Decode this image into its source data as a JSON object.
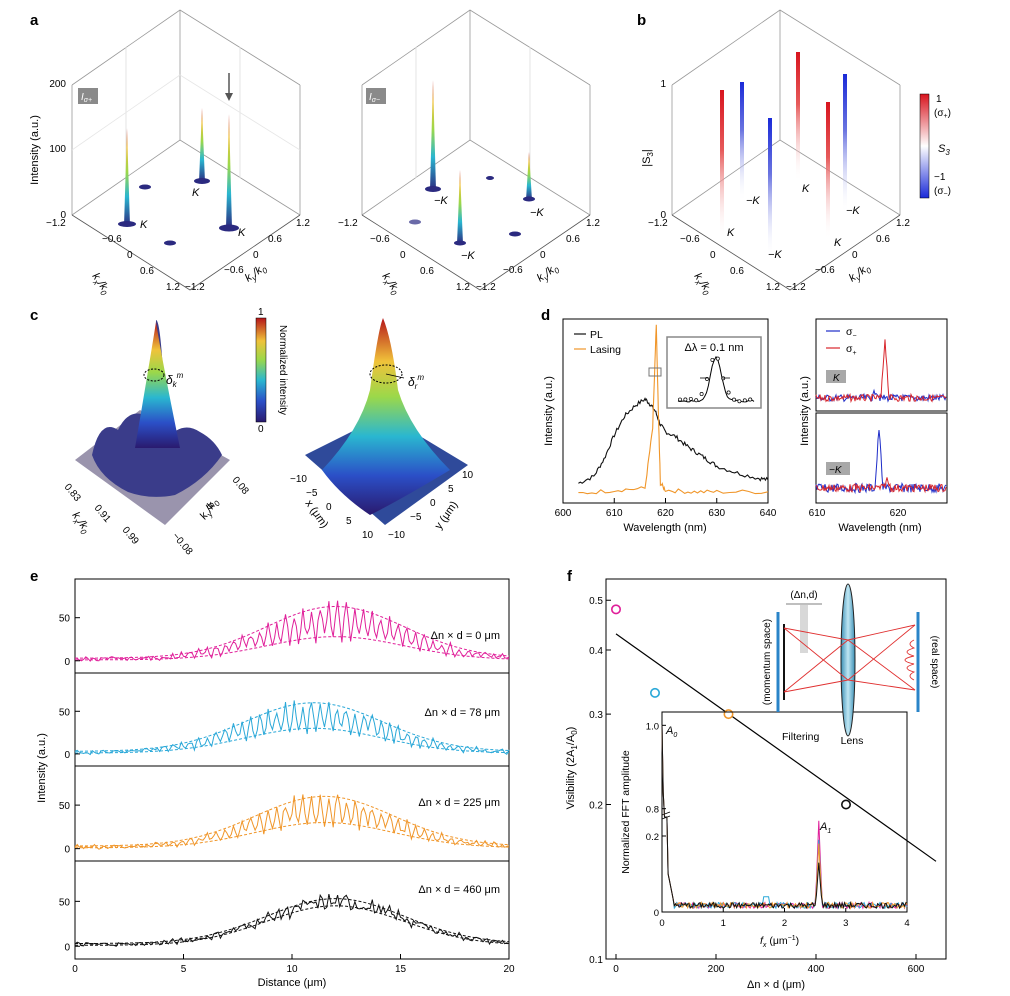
{
  "panels": {
    "a": "a",
    "b": "b",
    "c": "c",
    "d": "d",
    "e": "e",
    "f": "f"
  },
  "panel_a": {
    "left_badge": "I",
    "left_badge_sub": "σ+",
    "right_badge": "I",
    "right_badge_sub": "σ−",
    "z_label": "Intensity (a.u.)",
    "z_ticks": [
      "0",
      "100",
      "200"
    ],
    "kx_label": "k",
    "kx_label_sub": "x",
    "kx_label_den": "/k",
    "kx_label_den_sub": "0",
    "ky_label": "k",
    "ky_label_sub": "y",
    "ky_label_den": "/k",
    "ky_label_den_sub": "0",
    "kx_ticks": [
      "−1.2",
      "−0.6",
      "0",
      "0.6",
      "1.2"
    ],
    "ky_ticks": [
      "−1.2",
      "−0.6",
      "0",
      "0.6",
      "1.2"
    ],
    "left_valleys": [
      "K",
      "K",
      "K"
    ],
    "right_valleys": [
      "−K",
      "−K",
      "−K"
    ]
  },
  "panel_b": {
    "z_label": "|S",
    "z_label_sub": "3",
    "z_label_end": "|",
    "z_ticks": [
      "0",
      "1"
    ],
    "colorbar_top": "1",
    "colorbar_top_sub": "(σ",
    "colorbar_top_sub2": "+",
    "colorbar_top_sub3": ")",
    "colorbar_mid": "S",
    "colorbar_mid_sub": "3",
    "colorbar_bottom": "−1",
    "colorbar_bottom_sub": "(σ",
    "colorbar_bottom_sub2": "−",
    "colorbar_bottom_sub3": ")",
    "valleys": [
      "K",
      "−K",
      "K",
      "−K",
      "−K",
      "K"
    ]
  },
  "panel_c": {
    "colorbar_top": "1",
    "colorbar_bottom": "0",
    "colorbar_label": "Normalized intensity",
    "delta_k": "δ",
    "delta_k_sub": "k",
    "delta_k_sup": "m",
    "delta_r": "δ",
    "delta_r_sub": "r",
    "delta_r_sup": "m",
    "left_kx_ticks": [
      "0.83",
      "0.91",
      "0.99"
    ],
    "left_ky_ticks": [
      "0.08",
      "0",
      "−0.08"
    ],
    "left_kx_label": "k",
    "left_kx_label_sub": "x",
    "left_ky_label": "k",
    "left_ky_label_sub": "y",
    "label_den": "/k",
    "label_den_sub": "0",
    "right_x_ticks": [
      "−10",
      "−5",
      "0",
      "5",
      "10"
    ],
    "right_y_ticks": [
      "10",
      "5",
      "0",
      "−5",
      "−10"
    ],
    "right_x_label": "x (μm)",
    "right_y_label": "y (μm)"
  },
  "panel_d": {
    "legend": [
      "PL",
      "Lasing"
    ],
    "inset_label": "Δλ = 0.1 nm",
    "ylabel": "Intensity (a.u.)",
    "xlabel": "Wavelength (nm)",
    "xticks": [
      "600",
      "610",
      "620",
      "630",
      "640"
    ],
    "right_legend": [
      "σ",
      "σ"
    ],
    "right_legend_sub": [
      "−",
      "+"
    ],
    "right_top_badge": "K",
    "right_bottom_badge": "−K",
    "right_ylabel": "Intensity (a.u.)",
    "right_xlabel": "Wavelength (nm)",
    "right_xticks": [
      "610",
      "620"
    ]
  },
  "panel_e": {
    "ylabel": "Intensity (a.u.)",
    "xlabel": "Distance (μm)",
    "xticks": [
      "0",
      "5",
      "10",
      "15",
      "20"
    ],
    "yticks": [
      "0",
      "50"
    ],
    "row_labels": [
      "Δn × d = 0 μm",
      "Δn × d = 78 μm",
      "Δn × d = 225 μm",
      "Δn × d = 460 μm"
    ]
  },
  "panel_f": {
    "ylabel": "Visibility (2A",
    "ylabel_sub": "1",
    "ylabel_mid": "/A",
    "ylabel_sub2": "0",
    "ylabel_end": ")",
    "xlabel": "Δn × d (μm)",
    "yticks": [
      "0.1",
      "0.2",
      "0.3",
      "0.4",
      "0.5"
    ],
    "xticks": [
      "0",
      "200",
      "400",
      "600"
    ],
    "inset_ylabel": "Normalized FFT amplitude",
    "inset_xlabel": "f",
    "inset_xlabel_sub": "x",
    "inset_xlabel_unit": " (μm",
    "inset_xlabel_sup": "−1",
    "inset_xlabel_end": ")",
    "inset_yticks": [
      "0",
      "0.2",
      "0.8",
      "1.0"
    ],
    "inset_xticks": [
      "0",
      "1",
      "2",
      "3",
      "4"
    ],
    "A0": "A",
    "A0_sub": "0",
    "A1": "A",
    "A1_sub": "1",
    "schematic_top": "(Δn,d)",
    "schematic_left": "(momentum space)",
    "schematic_right": "(real space)",
    "filtering": "Filtering",
    "lens": "Lens"
  },
  "colors": {
    "pink": "#e0209a",
    "cyan": "#2aa8d8",
    "orange": "#f0962a",
    "black": "#111111",
    "red": "#d8262c",
    "blue": "#1d2cc8"
  },
  "chart_data": [
    {
      "type": "line",
      "panel": "d",
      "xlabel": "Wavelength (nm)",
      "ylabel": "Intensity (a.u.)",
      "xlim": [
        600,
        640
      ],
      "series": [
        {
          "name": "PL",
          "x": [
            603,
            606,
            608,
            610,
            612,
            614,
            616,
            617,
            618,
            619,
            620,
            622,
            624,
            626,
            628,
            630,
            634,
            638,
            640
          ],
          "y": [
            0.08,
            0.12,
            0.22,
            0.36,
            0.47,
            0.53,
            0.57,
            0.54,
            0.5,
            0.42,
            0.38,
            0.35,
            0.3,
            0.26,
            0.22,
            0.18,
            0.14,
            0.11,
            0.1
          ]
        },
        {
          "name": "Lasing",
          "x": [
            603,
            610,
            616,
            617.5,
            618.2,
            618.6,
            619,
            620,
            625,
            630,
            640
          ],
          "y": [
            0.02,
            0.04,
            0.05,
            0.4,
            1.0,
            0.5,
            0.08,
            0.04,
            0.03,
            0.03,
            0.03
          ]
        }
      ]
    },
    {
      "type": "line",
      "panel": "e",
      "xlabel": "Distance (μm)",
      "ylabel": "Intensity (a.u.)",
      "xlim": [
        0,
        20
      ],
      "series": [
        {
          "name": "Δn × d = 0 μm",
          "center": 12,
          "envelope_max": 63,
          "envelope_min": 28
        },
        {
          "name": "Δn × d = 78 μm",
          "center": 11,
          "envelope_max": 60,
          "envelope_min": 30
        },
        {
          "name": "Δn × d = 225 μm",
          "center": 11.5,
          "envelope_max": 60,
          "envelope_min": 30
        },
        {
          "name": "Δn × d = 460 μm",
          "center": 12,
          "envelope_max": 53,
          "envelope_min": 45
        }
      ]
    },
    {
      "type": "scatter",
      "panel": "f",
      "xlabel": "Δn × d (μm)",
      "ylabel": "Visibility (2A1/A0)",
      "ylim": [
        0.1,
        0.55
      ],
      "xlim": [
        -20,
        660
      ],
      "points": [
        {
          "x": 0,
          "y": 0.48
        },
        {
          "x": 78,
          "y": 0.33
        },
        {
          "x": 225,
          "y": 0.3
        },
        {
          "x": 460,
          "y": 0.2
        }
      ],
      "fit_line": {
        "x": [
          0,
          640
        ],
        "y": [
          0.43,
          0.155
        ]
      }
    }
  ]
}
